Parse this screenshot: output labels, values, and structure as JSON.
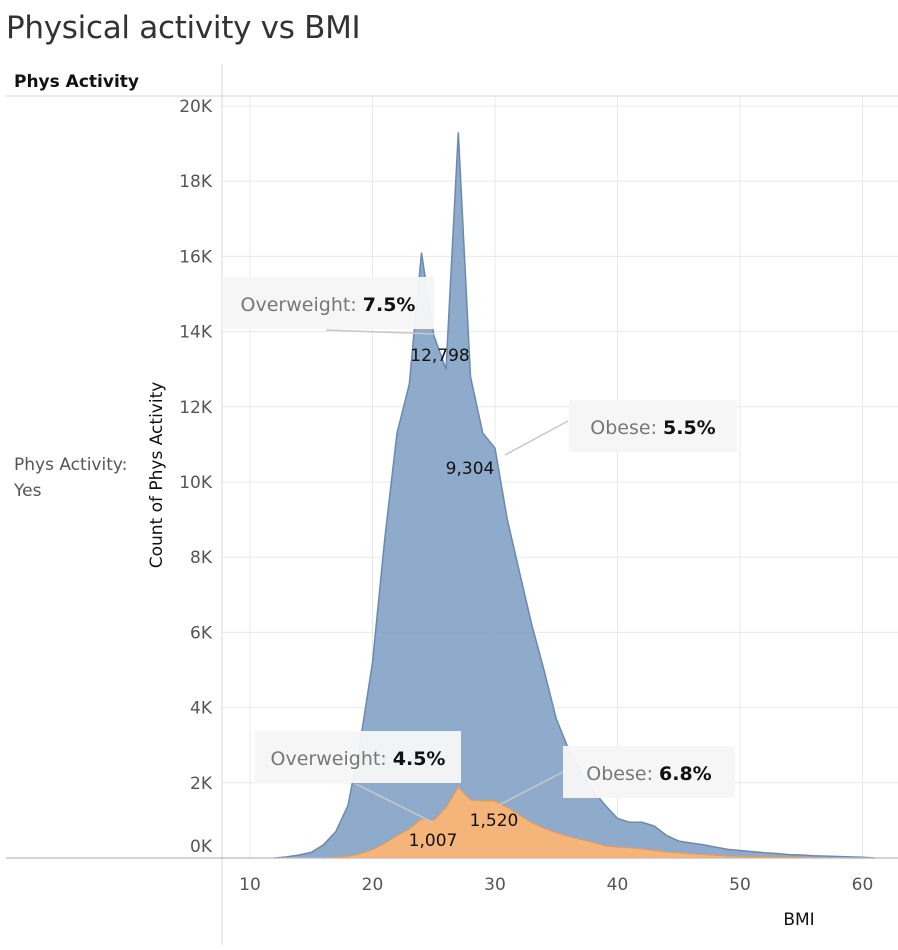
{
  "title": "Physical activity vs BMI",
  "row_header": "Phys Activity",
  "row_label": "Phys Activity: Yes",
  "colors": {
    "blue": "#7f9fc4",
    "blue_line": "#6a89b0",
    "orange": "#f4b47a",
    "orange_line": "#d99c61",
    "grid": "#e8e8e8"
  },
  "chart_data": {
    "type": "area",
    "xlabel": "BMI",
    "ylabel": "Count of Phys Activity",
    "xlim": [
      8,
      63
    ],
    "ylim": [
      0,
      20000
    ],
    "x_ticks": [
      10,
      20,
      30,
      40,
      50,
      60
    ],
    "y_ticks": [
      0,
      2000,
      4000,
      6000,
      8000,
      10000,
      12000,
      14000,
      16000,
      18000,
      20000
    ],
    "y_tick_labels": [
      "0K",
      "2K",
      "4K",
      "6K",
      "8K",
      "10K",
      "12K",
      "14K",
      "16K",
      "18K",
      "20K"
    ],
    "series": [
      {
        "values": [
          [
            12,
            0
          ],
          [
            13,
            30
          ],
          [
            14,
            80
          ],
          [
            15,
            150
          ],
          [
            16,
            350
          ],
          [
            17,
            700
          ],
          [
            18,
            1400
          ],
          [
            19,
            3100
          ],
          [
            20,
            5200
          ],
          [
            21,
            8500
          ],
          [
            22,
            11300
          ],
          [
            23,
            12600
          ],
          [
            24,
            16100
          ],
          [
            25,
            13900
          ],
          [
            26,
            13000
          ],
          [
            27,
            19300
          ],
          [
            28,
            12800
          ],
          [
            29,
            11300
          ],
          [
            30,
            10900
          ],
          [
            31,
            9000
          ],
          [
            32,
            7600
          ],
          [
            33,
            6200
          ],
          [
            34,
            5000
          ],
          [
            35,
            3700
          ],
          [
            36,
            2900
          ],
          [
            37,
            2300
          ],
          [
            38,
            1800
          ],
          [
            39,
            1400
          ],
          [
            40,
            1050
          ],
          [
            41,
            950
          ],
          [
            42,
            950
          ],
          [
            43,
            850
          ],
          [
            44,
            600
          ],
          [
            45,
            450
          ],
          [
            46,
            400
          ],
          [
            47,
            350
          ],
          [
            48,
            290
          ],
          [
            49,
            230
          ],
          [
            50,
            200
          ],
          [
            51,
            170
          ],
          [
            52,
            140
          ],
          [
            53,
            120
          ],
          [
            54,
            90
          ],
          [
            55,
            80
          ],
          [
            56,
            60
          ],
          [
            57,
            50
          ],
          [
            58,
            40
          ],
          [
            59,
            30
          ],
          [
            60,
            20
          ],
          [
            61,
            0
          ]
        ]
      },
      {
        "values": [
          [
            16,
            0
          ],
          [
            17,
            20
          ],
          [
            18,
            50
          ],
          [
            19,
            120
          ],
          [
            20,
            230
          ],
          [
            21,
            400
          ],
          [
            22,
            600
          ],
          [
            23,
            780
          ],
          [
            24,
            1050
          ],
          [
            25,
            1007
          ],
          [
            26,
            1350
          ],
          [
            27,
            1900
          ],
          [
            28,
            1550
          ],
          [
            29,
            1520
          ],
          [
            30,
            1520
          ],
          [
            31,
            1350
          ],
          [
            32,
            1150
          ],
          [
            33,
            950
          ],
          [
            34,
            800
          ],
          [
            35,
            680
          ],
          [
            36,
            580
          ],
          [
            37,
            500
          ],
          [
            38,
            420
          ],
          [
            39,
            330
          ],
          [
            40,
            300
          ],
          [
            41,
            280
          ],
          [
            42,
            250
          ],
          [
            43,
            210
          ],
          [
            44,
            170
          ],
          [
            45,
            150
          ],
          [
            46,
            120
          ],
          [
            47,
            100
          ],
          [
            48,
            80
          ],
          [
            49,
            60
          ],
          [
            50,
            50
          ],
          [
            52,
            30
          ],
          [
            55,
            15
          ],
          [
            60,
            0
          ]
        ]
      }
    ],
    "annotations": [
      {
        "label": "Overweight: ",
        "value": "7.5%",
        "point": [
          25.3,
          12798
        ],
        "text": "12,798"
      },
      {
        "label": "Obese: ",
        "value": "5.5%",
        "point": [
          30.1,
          9304
        ],
        "text": "9,304"
      },
      {
        "label": "Overweight: ",
        "value": "4.5%",
        "point": [
          25.2,
          1007
        ],
        "text": "1,007"
      },
      {
        "label": "Obese: ",
        "value": "6.8%",
        "point": [
          30.5,
          1520
        ],
        "text": "1,520"
      }
    ]
  }
}
